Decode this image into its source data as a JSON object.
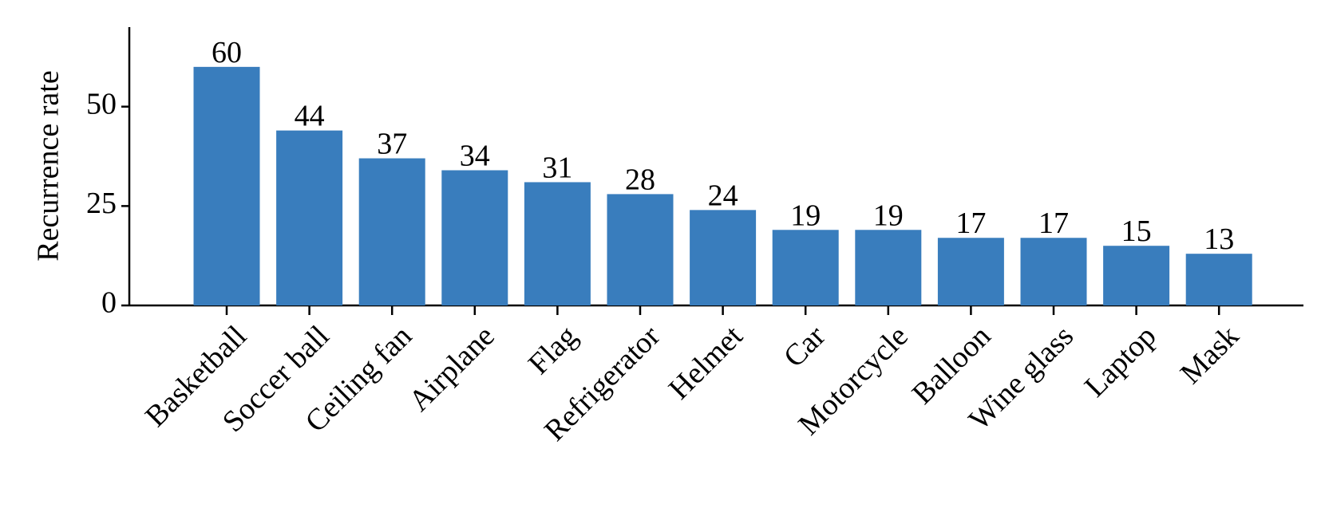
{
  "chart_data": {
    "type": "bar",
    "y_label": "Recurrence rate",
    "categories": [
      "Basketball",
      "Soccer ball",
      "Ceiling fan",
      "Airplane",
      "Flag",
      "Refrigerator",
      "Helmet",
      "Car",
      "Motorcycle",
      "Balloon",
      "Wine glass",
      "Laptop",
      "Mask"
    ],
    "values": [
      60,
      44,
      37,
      34,
      31,
      28,
      24,
      19,
      19,
      17,
      17,
      15,
      13
    ],
    "color": "#397dbd",
    "ylim": [
      0,
      70
    ],
    "yticks": [
      0,
      25,
      50
    ],
    "grid": false
  }
}
